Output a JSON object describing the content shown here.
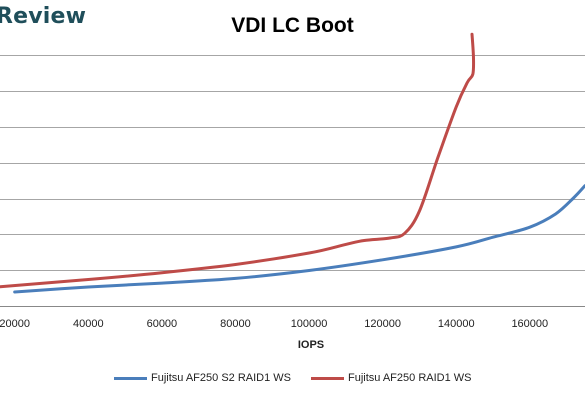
{
  "brand": {
    "text": "Review"
  },
  "chart_data": {
    "type": "line",
    "title": "VDI LC Boot",
    "xlabel": "IOPS",
    "ylabel": "",
    "xlim": [
      16000,
      175000
    ],
    "x_ticks": [
      20000,
      40000,
      60000,
      80000,
      100000,
      120000,
      140000,
      160000
    ],
    "x_tick_labels": [
      "20000",
      "40000",
      "60000",
      "80000",
      "100000",
      "120000",
      "140000",
      "160000"
    ],
    "ylim": [
      0,
      8
    ],
    "y_ticks": [
      0,
      1,
      2,
      3,
      4,
      5,
      6,
      7,
      8
    ],
    "grid": true,
    "legend_position": "bottom",
    "series": [
      {
        "name": "Fujitsu AF250 S2 RAID1 WS",
        "color": "#4a7ebb",
        "x": [
          20000,
          40000,
          60000,
          80000,
          100000,
          120000,
          140000,
          150000,
          160000,
          167000,
          172000,
          175000
        ],
        "y": [
          0.39,
          0.53,
          0.64,
          0.77,
          0.99,
          1.29,
          1.65,
          1.92,
          2.2,
          2.57,
          3.03,
          3.36
        ]
      },
      {
        "name": "Fujitsu AF250 RAID1 WS",
        "color": "#be4b48",
        "x": [
          16000,
          40000,
          60000,
          80000,
          100000,
          110000,
          115000,
          122000,
          126000,
          130000,
          135000,
          140000,
          143000,
          144500,
          144700,
          144300
        ],
        "y": [
          0.54,
          0.74,
          0.93,
          1.16,
          1.48,
          1.72,
          1.83,
          1.9,
          2.03,
          2.65,
          4.14,
          5.56,
          6.24,
          6.47,
          6.91,
          7.59
        ]
      }
    ]
  }
}
